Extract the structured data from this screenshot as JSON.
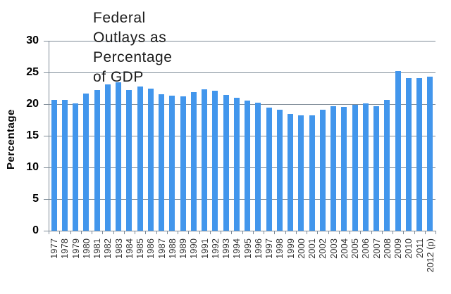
{
  "chart_data": {
    "type": "bar",
    "title": "Federal\nOutlays as\nPercentage\nof GDP",
    "ylabel": "Percentage",
    "xlabel": "",
    "legend": "none",
    "grid": true,
    "ylim": [
      0,
      30
    ],
    "yticks": [
      0,
      5,
      10,
      15,
      20,
      25,
      30
    ],
    "categories": [
      "1977",
      "1978",
      "1979",
      "1980",
      "1981",
      "1982",
      "1983",
      "1984",
      "1985",
      "1986",
      "1987",
      "1988",
      "1989",
      "1990",
      "1991",
      "1992",
      "1993",
      "1994",
      "1995",
      "1996",
      "1997",
      "1998",
      "1999",
      "2000",
      "2001",
      "2002",
      "2003",
      "2004",
      "2005",
      "2006",
      "2007",
      "2008",
      "2009",
      "2010",
      "2011",
      "2012 (p)"
    ],
    "values": [
      20.7,
      20.7,
      20.1,
      21.7,
      22.2,
      23.1,
      23.5,
      22.2,
      22.8,
      22.5,
      21.6,
      21.3,
      21.2,
      21.9,
      22.3,
      22.1,
      21.4,
      21.0,
      20.6,
      20.2,
      19.5,
      19.1,
      18.5,
      18.2,
      18.2,
      19.1,
      19.7,
      19.6,
      19.9,
      20.1,
      19.7,
      20.7,
      25.2,
      24.1,
      24.1,
      24.3
    ],
    "bar_color": "#4296EC",
    "gridline_color": "#7e8b97",
    "axis_color": "#7e8b97",
    "title_color": "#1c1c1c",
    "tick_label_color": "#333333"
  }
}
